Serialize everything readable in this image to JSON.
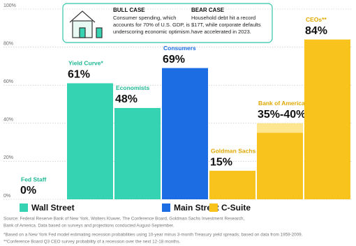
{
  "chart_data": {
    "type": "bar",
    "categories": [
      "Fed Staff",
      "Yield Curve*",
      "Economists",
      "Consumers",
      "Goldman Sachs",
      "Bank of America",
      "CEOs**"
    ],
    "values": [
      0,
      61,
      48,
      69,
      15,
      35,
      84
    ],
    "range_high": [
      null,
      null,
      null,
      null,
      null,
      40,
      null
    ],
    "value_labels": [
      "0%",
      "61%",
      "48%",
      "69%",
      "15%",
      "35%-40%",
      "84%"
    ],
    "group_of_bar": [
      0,
      0,
      0,
      1,
      2,
      2,
      2
    ],
    "groups": [
      {
        "name": "Wall Street",
        "color": "#35d3b2",
        "text_color": "#1fb894"
      },
      {
        "name": "Main Street",
        "color": "#1c6ce3",
        "text_color": "#1c6ce3"
      },
      {
        "name": "C-Suite",
        "color": "#f8c31c",
        "text_color": "#e0a800"
      }
    ],
    "range_color": "#fde68f",
    "ylim": [
      0,
      100
    ],
    "yticks": [
      {
        "value": 0,
        "label": "0%"
      },
      {
        "value": 20,
        "label": "20%"
      },
      {
        "value": 40,
        "label": "40%"
      },
      {
        "value": 60,
        "label": "60%"
      },
      {
        "value": 80,
        "label": "80%"
      },
      {
        "value": 100,
        "label": "100%"
      }
    ],
    "grid": true,
    "bull_case": {
      "title": "BULL CASE",
      "lines": [
        "Consumer spending, which",
        "accounts for 70% of U.S. GDP, is",
        "underscoring economic optimism."
      ]
    },
    "bear_case": {
      "title": "BEAR CASE",
      "lines": [
        "Household debt hit a record",
        "$17T, while corporate defaults",
        "have accelerated in 2023."
      ]
    },
    "notes": [
      "Source: Federal Reserve Bank of New York, Wolters Kluwer, The Conference Board, Goldman Sachs Investment Research,",
      "Bank of America. Data based on surveys and projections conducted August-September.",
      "*Based on a New York Fed model estimating recession probabilities using 10-year minus 3-month Treasury yield spreads; based on data from 1959-2009.",
      "**Conference Board Q3 CEO survey probability of a recession over the next 12-18 months."
    ]
  }
}
